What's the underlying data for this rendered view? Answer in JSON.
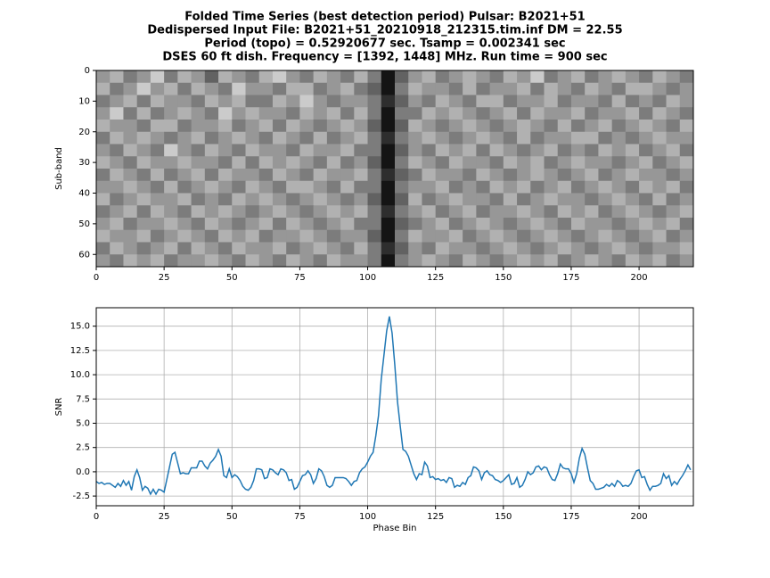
{
  "chart_data": [
    {
      "type": "heatmap",
      "title": [
        "Folded Time Series (best detection period)     Pulsar: B2021+51",
        "Dedispersed Input File:  B2021+51_20210918_212315.tim.inf     DM = 22.55",
        "Period (topo) = 0.52920677 sec.     Tsamp = 0.002341 sec",
        "DSES 60 ft dish.   Frequency = [1392, 1448] MHz.    Run time = 900 sec"
      ],
      "ylabel": "Sub-band",
      "colormap": "gray_r",
      "zlim": [
        0,
        9
      ],
      "xlim": [
        0,
        220
      ],
      "xticks": [
        0,
        25,
        50,
        75,
        100,
        125,
        150,
        175,
        200
      ],
      "ylim": [
        64,
        0
      ],
      "yticks": [
        0,
        10,
        20,
        30,
        40,
        50,
        60
      ],
      "values": [
        [
          4,
          3,
          5,
          4,
          2,
          5,
          3,
          4,
          6,
          3,
          4,
          5,
          3,
          2,
          4,
          5,
          3,
          4,
          5,
          3,
          5,
          9,
          6,
          4,
          3,
          5,
          4,
          3,
          4,
          5,
          3,
          4,
          2,
          5,
          4,
          3,
          5,
          4,
          3,
          4,
          5,
          3,
          4,
          5
        ],
        [
          3,
          5,
          4,
          2,
          4,
          3,
          5,
          3,
          4,
          5,
          2,
          4,
          4,
          5,
          3,
          3,
          5,
          4,
          3,
          5,
          6,
          9,
          5,
          3,
          4,
          4,
          5,
          3,
          5,
          4,
          4,
          3,
          5,
          3,
          4,
          5,
          3,
          4,
          5,
          3,
          3,
          4,
          5,
          4
        ],
        [
          5,
          4,
          3,
          5,
          3,
          4,
          4,
          5,
          3,
          4,
          3,
          5,
          5,
          3,
          4,
          2,
          4,
          5,
          4,
          4,
          5,
          8,
          6,
          4,
          5,
          3,
          4,
          5,
          3,
          3,
          5,
          4,
          4,
          3,
          5,
          4,
          4,
          5,
          3,
          5,
          4,
          5,
          3,
          4
        ],
        [
          4,
          2,
          5,
          3,
          5,
          4,
          3,
          4,
          5,
          2,
          4,
          3,
          4,
          4,
          5,
          3,
          4,
          3,
          5,
          3,
          5,
          9,
          5,
          5,
          3,
          4,
          3,
          4,
          5,
          4,
          3,
          5,
          3,
          4,
          4,
          3,
          5,
          4,
          4,
          3,
          5,
          3,
          4,
          5
        ],
        [
          3,
          4,
          4,
          5,
          3,
          3,
          5,
          4,
          4,
          3,
          5,
          4,
          3,
          5,
          3,
          4,
          5,
          4,
          3,
          4,
          6,
          9,
          6,
          3,
          4,
          5,
          4,
          3,
          4,
          5,
          4,
          3,
          4,
          5,
          3,
          5,
          4,
          3,
          5,
          4,
          3,
          4,
          5,
          3
        ],
        [
          5,
          3,
          4,
          3,
          4,
          5,
          4,
          3,
          5,
          4,
          3,
          4,
          5,
          3,
          4,
          5,
          3,
          5,
          4,
          3,
          5,
          8,
          5,
          4,
          3,
          4,
          5,
          4,
          3,
          4,
          5,
          3,
          5,
          4,
          4,
          3,
          3,
          5,
          4,
          5,
          4,
          3,
          4,
          4
        ],
        [
          4,
          5,
          3,
          4,
          5,
          2,
          4,
          5,
          3,
          4,
          5,
          3,
          4,
          4,
          5,
          3,
          4,
          4,
          3,
          5,
          5,
          9,
          6,
          4,
          5,
          3,
          4,
          3,
          5,
          3,
          4,
          5,
          4,
          3,
          5,
          4,
          5,
          3,
          4,
          3,
          5,
          4,
          3,
          5
        ],
        [
          3,
          4,
          5,
          3,
          4,
          4,
          3,
          4,
          4,
          5,
          3,
          5,
          3,
          4,
          3,
          4,
          5,
          3,
          5,
          4,
          6,
          9,
          5,
          3,
          4,
          5,
          3,
          4,
          4,
          5,
          3,
          4,
          3,
          5,
          4,
          3,
          4,
          4,
          5,
          4,
          3,
          5,
          4,
          3
        ],
        [
          5,
          3,
          4,
          5,
          3,
          5,
          4,
          3,
          5,
          3,
          4,
          4,
          5,
          3,
          4,
          5,
          3,
          4,
          4,
          3,
          5,
          8,
          6,
          5,
          3,
          4,
          4,
          5,
          3,
          4,
          5,
          4,
          3,
          4,
          5,
          4,
          3,
          5,
          4,
          3,
          4,
          4,
          5,
          4
        ],
        [
          4,
          4,
          3,
          4,
          5,
          3,
          5,
          4,
          3,
          4,
          5,
          3,
          4,
          5,
          3,
          3,
          4,
          5,
          3,
          5,
          5,
          9,
          5,
          4,
          4,
          3,
          5,
          4,
          5,
          3,
          4,
          3,
          5,
          4,
          3,
          5,
          4,
          3,
          4,
          5,
          3,
          4,
          3,
          5
        ],
        [
          3,
          5,
          4,
          3,
          4,
          4,
          3,
          5,
          4,
          5,
          3,
          4,
          3,
          4,
          5,
          4,
          3,
          4,
          5,
          4,
          6,
          9,
          6,
          3,
          5,
          4,
          3,
          4,
          4,
          5,
          3,
          5,
          4,
          3,
          4,
          4,
          5,
          4,
          3,
          4,
          5,
          3,
          5,
          4
        ],
        [
          5,
          4,
          3,
          5,
          3,
          4,
          5,
          3,
          4,
          3,
          4,
          5,
          4,
          3,
          4,
          5,
          4,
          3,
          4,
          3,
          5,
          8,
          5,
          4,
          3,
          5,
          4,
          3,
          5,
          4,
          4,
          3,
          4,
          5,
          3,
          4,
          3,
          5,
          4,
          3,
          4,
          5,
          4,
          3
        ],
        [
          4,
          3,
          5,
          4,
          4,
          3,
          4,
          5,
          3,
          4,
          5,
          4,
          3,
          5,
          3,
          4,
          5,
          4,
          3,
          5,
          5,
          9,
          6,
          5,
          4,
          3,
          5,
          4,
          3,
          4,
          5,
          4,
          3,
          4,
          5,
          3,
          4,
          4,
          5,
          4,
          3,
          4,
          3,
          5
        ],
        [
          3,
          4,
          4,
          3,
          5,
          4,
          3,
          4,
          5,
          3,
          4,
          3,
          5,
          4,
          4,
          3,
          4,
          5,
          4,
          4,
          6,
          9,
          5,
          3,
          4,
          4,
          3,
          5,
          4,
          3,
          4,
          5,
          4,
          3,
          4,
          5,
          4,
          3,
          4,
          5,
          4,
          3,
          5,
          4
        ],
        [
          5,
          3,
          4,
          5,
          4,
          3,
          5,
          3,
          4,
          5,
          3,
          4,
          4,
          3,
          5,
          4,
          3,
          4,
          5,
          3,
          5,
          8,
          6,
          4,
          5,
          3,
          4,
          4,
          5,
          4,
          3,
          4,
          5,
          4,
          3,
          4,
          5,
          4,
          3,
          4,
          5,
          4,
          4,
          3
        ],
        [
          4,
          5,
          3,
          4,
          3,
          5,
          4,
          4,
          3,
          4,
          5,
          3,
          4,
          5,
          3,
          4,
          5,
          3,
          4,
          4,
          5,
          9,
          5,
          4,
          3,
          4,
          5,
          3,
          4,
          5,
          4,
          3,
          4,
          3,
          5,
          4,
          3,
          4,
          5,
          3,
          4,
          3,
          5,
          4
        ]
      ]
    },
    {
      "type": "line",
      "xlabel": "Phase Bin",
      "ylabel": "SNR",
      "grid": true,
      "xlim": [
        0,
        220
      ],
      "xticks": [
        0,
        25,
        50,
        75,
        100,
        125,
        150,
        175,
        200
      ],
      "ylim": [
        -3.5,
        16.9
      ],
      "yticks": [
        -2.5,
        {
          "value": 0,
          "label": "0.0"
        },
        2.5,
        {
          "value": 5,
          "label": "5.0"
        },
        7.5,
        {
          "value": 10,
          "label": "10.0"
        },
        12.5,
        {
          "value": 15,
          "label": "15.0"
        }
      ],
      "color": "#1f77b4",
      "x": [
        0,
        1,
        2,
        3,
        4,
        5,
        6,
        7,
        8,
        9,
        10,
        11,
        12,
        13,
        14,
        15,
        16,
        17,
        18,
        19,
        20,
        21,
        22,
        23,
        24,
        25,
        26,
        27,
        28,
        29,
        30,
        31,
        32,
        33,
        34,
        35,
        36,
        37,
        38,
        39,
        40,
        41,
        42,
        43,
        44,
        45,
        46,
        47,
        48,
        49,
        50,
        51,
        52,
        53,
        54,
        55,
        56,
        57,
        58,
        59,
        60,
        61,
        62,
        63,
        64,
        65,
        66,
        67,
        68,
        69,
        70,
        71,
        72,
        73,
        74,
        75,
        76,
        77,
        78,
        79,
        80,
        81,
        82,
        83,
        84,
        85,
        86,
        87,
        88,
        89,
        90,
        91,
        92,
        93,
        94,
        95,
        96,
        97,
        98,
        99,
        100,
        101,
        102,
        103,
        104,
        105,
        106,
        107,
        108,
        109,
        110,
        111,
        112,
        113,
        114,
        115,
        116,
        117,
        118,
        119,
        120,
        121,
        122,
        123,
        124,
        125,
        126,
        127,
        128,
        129,
        130,
        131,
        132,
        133,
        134,
        135,
        136,
        137,
        138,
        139,
        140,
        141,
        142,
        143,
        144,
        145,
        146,
        147,
        148,
        149,
        150,
        151,
        152,
        153,
        154,
        155,
        156,
        157,
        158,
        159,
        160,
        161,
        162,
        163,
        164,
        165,
        166,
        167,
        168,
        169,
        170,
        171,
        172,
        173,
        174,
        175,
        176,
        177,
        178,
        179,
        180,
        181,
        182,
        183,
        184,
        185,
        186,
        187,
        188,
        189,
        190,
        191,
        192,
        193,
        194,
        195,
        196,
        197,
        198,
        199,
        200,
        201,
        202,
        203,
        204,
        205,
        206,
        207,
        208,
        209,
        210,
        211,
        212,
        213,
        214,
        215,
        216,
        217,
        218,
        219
      ],
      "values": [
        -1.0,
        -1.2,
        -1.1,
        -1.3,
        -1.2,
        -1.2,
        -1.4,
        -1.6,
        -1.2,
        -1.5,
        -0.9,
        -1.4,
        -1.0,
        -1.9,
        -0.5,
        0.2,
        -0.6,
        -1.9,
        -1.5,
        -1.7,
        -2.3,
        -1.8,
        -2.3,
        -1.8,
        -1.9,
        -2.1,
        -0.8,
        0.5,
        1.8,
        2.0,
        0.9,
        -0.2,
        -0.1,
        -0.2,
        -0.2,
        0.4,
        0.4,
        0.4,
        1.1,
        1.1,
        0.6,
        0.3,
        0.9,
        1.2,
        1.6,
        2.3,
        1.6,
        -0.4,
        -0.6,
        0.3,
        -0.6,
        -0.3,
        -0.5,
        -0.9,
        -1.5,
        -1.8,
        -1.9,
        -1.6,
        -0.9,
        0.3,
        0.3,
        0.2,
        -0.7,
        -0.6,
        0.3,
        0.2,
        -0.1,
        -0.3,
        0.3,
        0.2,
        -0.1,
        -0.9,
        -0.8,
        -1.8,
        -1.6,
        -1.0,
        -0.4,
        -0.3,
        0.1,
        -0.3,
        -1.2,
        -0.7,
        0.3,
        0.1,
        -0.5,
        -1.4,
        -1.6,
        -1.4,
        -0.6,
        -0.6,
        -0.6,
        -0.6,
        -0.7,
        -1.0,
        -1.4,
        -1.0,
        -0.9,
        -0.1,
        0.3,
        0.5,
        1.0,
        1.6,
        2.0,
        3.7,
        5.8,
        9.5,
        12.0,
        14.5,
        16.0,
        14.3,
        11.0,
        7.2,
        4.7,
        2.3,
        2.1,
        1.6,
        0.7,
        -0.2,
        -0.8,
        -0.2,
        -0.3,
        1.0,
        0.6,
        -0.6,
        -0.5,
        -0.8,
        -0.7,
        -0.9,
        -0.8,
        -1.1,
        -0.6,
        -0.7,
        -1.6,
        -1.4,
        -1.5,
        -1.1,
        -1.3,
        -0.6,
        -0.4,
        0.5,
        0.4,
        0.1,
        -0.8,
        -0.1,
        0.1,
        -0.3,
        -0.4,
        -0.8,
        -0.9,
        -1.1,
        -0.9,
        -0.6,
        -0.3,
        -1.3,
        -1.2,
        -0.6,
        -1.6,
        -1.4,
        -0.8,
        0.0,
        -0.3,
        -0.1,
        0.5,
        0.6,
        0.2,
        0.5,
        0.4,
        -0.3,
        -0.8,
        -0.9,
        -0.2,
        0.8,
        0.4,
        0.3,
        0.3,
        -0.2,
        -1.1,
        -0.2,
        1.4,
        2.4,
        1.8,
        0.4,
        -0.9,
        -1.2,
        -1.8,
        -1.8,
        -1.7,
        -1.6,
        -1.3,
        -1.5,
        -1.2,
        -1.5,
        -0.9,
        -1.1,
        -1.5,
        -1.4,
        -1.5,
        -1.2,
        -0.5,
        0.1,
        0.2,
        -0.6,
        -0.5,
        -1.3,
        -1.9,
        -1.5,
        -1.5,
        -1.4,
        -1.2,
        -0.2,
        -0.7,
        -0.4,
        -1.4,
        -1.0,
        -1.3,
        -0.8,
        -0.4,
        0.1,
        0.7,
        0.2
      ]
    }
  ]
}
